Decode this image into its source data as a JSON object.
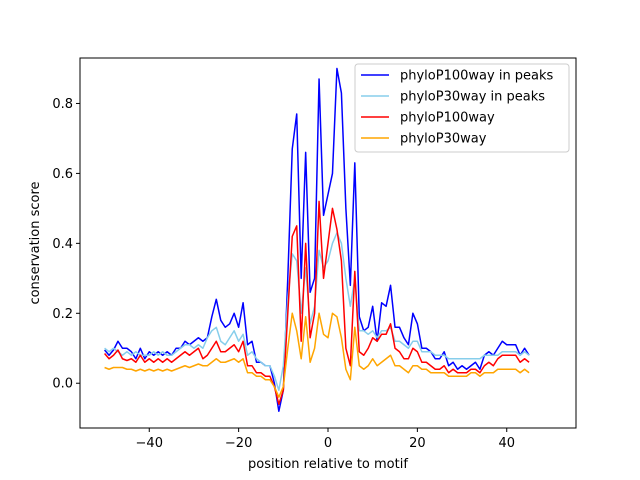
{
  "chart_data": {
    "type": "line",
    "title": "",
    "xlabel": "position relative to motif",
    "ylabel": "conservation score",
    "xlim": [
      -55.5,
      55.5
    ],
    "ylim": [
      -0.128,
      0.93
    ],
    "xticks": [
      -40,
      -20,
      0,
      20,
      40
    ],
    "xtick_labels": [
      "−40",
      "−20",
      "0",
      "20",
      "40"
    ],
    "yticks": [
      0.0,
      0.2,
      0.4,
      0.6,
      0.8
    ],
    "ytick_labels": [
      "0.0",
      "0.2",
      "0.4",
      "0.6",
      "0.8"
    ],
    "grid": false,
    "legend_position": "top-right",
    "x_start": -50,
    "x_step": 1,
    "series": [
      {
        "name": "phyloP100way in peaks",
        "color": "#0000ff",
        "values": [
          0.095,
          0.08,
          0.095,
          0.12,
          0.1,
          0.1,
          0.09,
          0.07,
          0.1,
          0.07,
          0.09,
          0.08,
          0.09,
          0.08,
          0.09,
          0.08,
          0.1,
          0.1,
          0.12,
          0.11,
          0.12,
          0.13,
          0.12,
          0.13,
          0.19,
          0.24,
          0.18,
          0.16,
          0.17,
          0.2,
          0.16,
          0.23,
          0.11,
          0.12,
          0.06,
          0.06,
          0.05,
          0.05,
          0.0,
          -0.08,
          -0.02,
          0.3,
          0.67,
          0.77,
          0.3,
          0.66,
          0.26,
          0.3,
          0.87,
          0.48,
          0.54,
          0.6,
          0.9,
          0.83,
          0.5,
          0.28,
          0.63,
          0.19,
          0.15,
          0.16,
          0.22,
          0.12,
          0.23,
          0.22,
          0.28,
          0.16,
          0.16,
          0.13,
          0.11,
          0.2,
          0.17,
          0.1,
          0.1,
          0.09,
          0.07,
          0.07,
          0.09,
          0.05,
          0.06,
          0.04,
          0.05,
          0.04,
          0.05,
          0.06,
          0.04,
          0.08,
          0.09,
          0.08,
          0.1,
          0.12,
          0.11,
          0.11,
          0.11,
          0.08,
          0.1,
          0.08
        ]
      },
      {
        "name": "phyloP30way in peaks",
        "color": "#87ceeb",
        "values": [
          0.1,
          0.09,
          0.1,
          0.09,
          0.08,
          0.09,
          0.08,
          0.09,
          0.08,
          0.08,
          0.08,
          0.09,
          0.08,
          0.09,
          0.08,
          0.08,
          0.09,
          0.1,
          0.11,
          0.11,
          0.1,
          0.11,
          0.1,
          0.13,
          0.15,
          0.16,
          0.12,
          0.11,
          0.13,
          0.15,
          0.12,
          0.14,
          0.08,
          0.09,
          0.07,
          0.06,
          0.05,
          0.05,
          0.02,
          -0.02,
          0.05,
          0.24,
          0.37,
          0.35,
          0.2,
          0.33,
          0.17,
          0.22,
          0.38,
          0.33,
          0.35,
          0.4,
          0.43,
          0.4,
          0.3,
          0.22,
          0.3,
          0.15,
          0.15,
          0.14,
          0.15,
          0.13,
          0.15,
          0.15,
          0.16,
          0.12,
          0.12,
          0.11,
          0.1,
          0.12,
          0.12,
          0.09,
          0.09,
          0.09,
          0.08,
          0.08,
          0.08,
          0.07,
          0.07,
          0.07,
          0.07,
          0.07,
          0.07,
          0.07,
          0.07,
          0.08,
          0.08,
          0.08,
          0.08,
          0.09,
          0.09,
          0.09,
          0.09,
          0.08,
          0.09,
          0.08
        ]
      },
      {
        "name": "phyloP100way",
        "color": "#ff0000",
        "values": [
          0.085,
          0.07,
          0.08,
          0.095,
          0.07,
          0.065,
          0.07,
          0.06,
          0.08,
          0.06,
          0.07,
          0.06,
          0.07,
          0.06,
          0.07,
          0.06,
          0.07,
          0.08,
          0.09,
          0.08,
          0.09,
          0.1,
          0.07,
          0.08,
          0.1,
          0.12,
          0.09,
          0.09,
          0.1,
          0.11,
          0.09,
          0.12,
          0.05,
          0.05,
          0.03,
          0.03,
          0.02,
          0.02,
          -0.01,
          -0.06,
          -0.02,
          0.2,
          0.42,
          0.45,
          0.12,
          0.4,
          0.13,
          0.2,
          0.52,
          0.3,
          0.4,
          0.5,
          0.44,
          0.35,
          0.1,
          0.05,
          0.32,
          0.09,
          0.08,
          0.1,
          0.13,
          0.12,
          0.14,
          0.14,
          0.17,
          0.1,
          0.09,
          0.07,
          0.07,
          0.1,
          0.09,
          0.06,
          0.06,
          0.05,
          0.04,
          0.04,
          0.05,
          0.03,
          0.04,
          0.03,
          0.03,
          0.03,
          0.04,
          0.04,
          0.03,
          0.05,
          0.06,
          0.05,
          0.07,
          0.08,
          0.08,
          0.08,
          0.08,
          0.06,
          0.07,
          0.06
        ]
      },
      {
        "name": "phyloP30way",
        "color": "#ffa500",
        "values": [
          0.045,
          0.04,
          0.045,
          0.045,
          0.045,
          0.04,
          0.04,
          0.035,
          0.04,
          0.035,
          0.04,
          0.035,
          0.04,
          0.035,
          0.04,
          0.035,
          0.04,
          0.045,
          0.05,
          0.045,
          0.05,
          0.055,
          0.05,
          0.05,
          0.06,
          0.07,
          0.06,
          0.06,
          0.065,
          0.07,
          0.06,
          0.07,
          0.03,
          0.03,
          0.02,
          0.02,
          0.01,
          0.01,
          -0.01,
          -0.04,
          -0.01,
          0.1,
          0.2,
          0.15,
          0.07,
          0.19,
          0.06,
          0.1,
          0.2,
          0.14,
          0.13,
          0.2,
          0.19,
          0.13,
          0.04,
          0.01,
          0.16,
          0.05,
          0.04,
          0.05,
          0.07,
          0.05,
          0.06,
          0.07,
          0.08,
          0.05,
          0.05,
          0.04,
          0.03,
          0.05,
          0.05,
          0.04,
          0.04,
          0.03,
          0.03,
          0.03,
          0.03,
          0.02,
          0.02,
          0.02,
          0.02,
          0.02,
          0.03,
          0.03,
          0.02,
          0.03,
          0.03,
          0.03,
          0.04,
          0.04,
          0.04,
          0.04,
          0.04,
          0.03,
          0.04,
          0.03
        ]
      }
    ]
  }
}
